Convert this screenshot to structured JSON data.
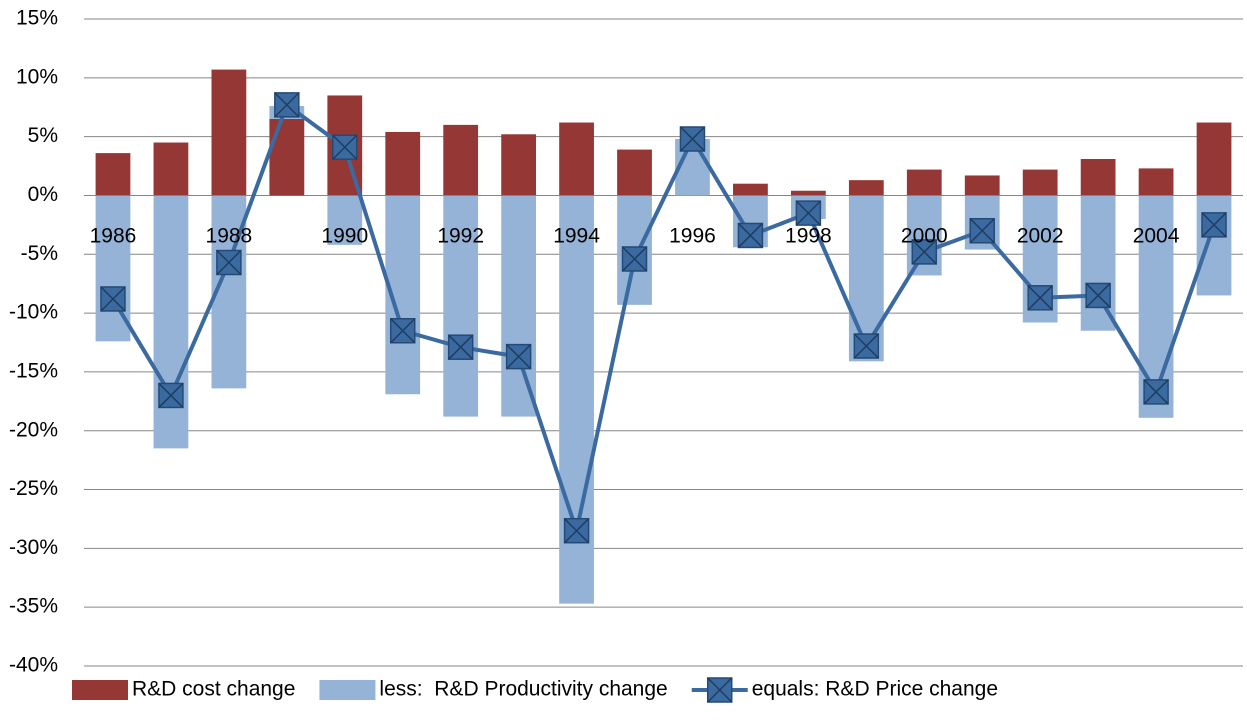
{
  "chart_data": {
    "type": "bar",
    "categories": [
      "1986",
      null,
      "1988",
      null,
      "1990",
      null,
      "1992",
      null,
      "1994",
      null,
      "1996",
      null,
      "1998",
      null,
      "2000",
      null,
      "2002",
      null,
      "2004",
      null
    ],
    "series": [
      {
        "name": "less:  R&D Productivity change",
        "type": "bar",
        "color": "#95b3d7",
        "values": [
          -12.4,
          -21.5,
          -16.4,
          7.6,
          -4.2,
          -16.9,
          -18.8,
          -18.8,
          -34.7,
          -9.3,
          4.8,
          -4.4,
          -2.0,
          -14.1,
          -6.8,
          -4.6,
          -10.8,
          -11.5,
          -18.9,
          -8.5
        ]
      },
      {
        "name": "R&D cost change",
        "type": "bar",
        "color": "#953735",
        "values": [
          3.6,
          4.5,
          10.7,
          6.5,
          8.5,
          5.4,
          6.0,
          5.2,
          6.2,
          3.9,
          0,
          1.0,
          0.4,
          1.3,
          2.2,
          1.7,
          2.2,
          3.1,
          2.3,
          6.2
        ]
      },
      {
        "name": "equals: R&D Price change",
        "type": "line",
        "color": "#3a6aa0",
        "values": [
          -8.8,
          -17.0,
          -5.7,
          7.7,
          4.1,
          -11.5,
          -12.9,
          -13.7,
          -28.5,
          -5.4,
          4.8,
          -3.4,
          -1.5,
          -12.8,
          -4.8,
          -3.0,
          -8.7,
          -8.5,
          -16.7,
          -2.5
        ]
      }
    ],
    "legend_order": [
      1,
      0,
      2
    ],
    "ylim": [
      -40,
      15
    ],
    "yticks": [
      {
        "value": -40,
        "label": "-40%"
      },
      {
        "value": -35,
        "label": "-35%"
      },
      {
        "value": -30,
        "label": "-30%"
      },
      {
        "value": -25,
        "label": "-25%"
      },
      {
        "value": -20,
        "label": "-20%"
      },
      {
        "value": -15,
        "label": "-15%"
      },
      {
        "value": -10,
        "label": "-10%"
      },
      {
        "value": -5,
        "label": "-5%"
      },
      {
        "value": 0,
        "label": "0%"
      },
      {
        "value": 5,
        "label": "5%"
      },
      {
        "value": 10,
        "label": "10%"
      },
      {
        "value": 15,
        "label": "15%"
      }
    ],
    "grid": true,
    "legend": "bottom"
  }
}
